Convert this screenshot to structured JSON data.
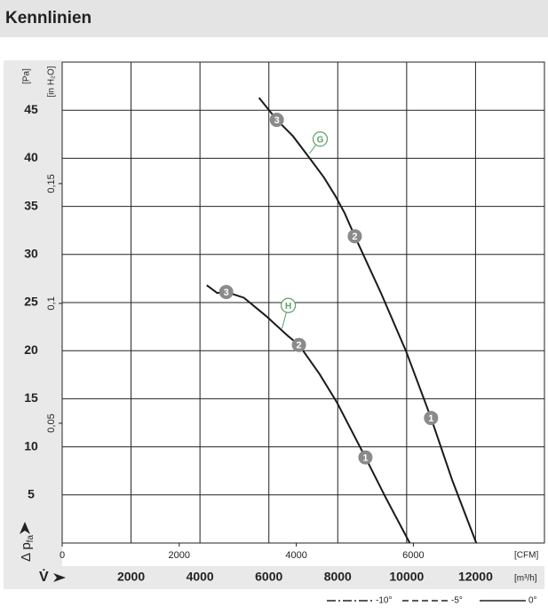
{
  "header": {
    "title": "Kennlinien"
  },
  "chart_data": {
    "type": "line",
    "x_label": "V̇",
    "x_unit": "[m³/h]",
    "x2_unit": "[CFM]",
    "y_label": "Δ p",
    "y_label_sub": "fa",
    "y_unit": "[Pa]",
    "y2_unit": "[in H₂O]",
    "xlim": [
      0,
      14000
    ],
    "xticks": [
      2000,
      4000,
      6000,
      8000,
      10000,
      12000
    ],
    "x2lim": [
      0,
      8240
    ],
    "x2ticks": [
      0,
      2000,
      4000,
      6000
    ],
    "ylim": [
      0,
      50
    ],
    "yticks": [
      5,
      10,
      15,
      20,
      25,
      30,
      35,
      40,
      45
    ],
    "y2lim": [
      0,
      0.2007
    ],
    "y2ticks": [
      {
        "value": 0.05,
        "label": "0,05"
      },
      {
        "value": 0.1,
        "label": "0,1"
      },
      {
        "value": 0.15,
        "label": "0,15"
      }
    ],
    "grid": true,
    "series": [
      {
        "name": "G",
        "color": "#1a1a1a",
        "name_pos": {
          "x": 7490,
          "y": 42.0,
          "tx": 7180,
          "ty": 40.5
        },
        "x": [
          5714,
          6230,
          6700,
          7207,
          7600,
          7928,
          8200,
          8494,
          9266,
          9987,
          10708,
          11326,
          12021
        ],
        "values": [
          46.3,
          44.0,
          42.3,
          39.9,
          38.0,
          36.1,
          34.3,
          31.9,
          25.9,
          19.9,
          13.0,
          6.5,
          0
        ],
        "markers": [
          {
            "x": 6230,
            "y": 44.0,
            "label": "3"
          },
          {
            "x": 8494,
            "y": 31.9,
            "label": "2"
          },
          {
            "x": 10708,
            "y": 13.0,
            "label": "1"
          }
        ]
      },
      {
        "name": "H",
        "color": "#1a1a1a",
        "name_pos": {
          "x": 6564,
          "y": 24.7,
          "tx": 6380,
          "ty": 22.3
        },
        "x": [
          4196,
          4500,
          4762,
          5277,
          5920,
          6564,
          6873,
          7465,
          7979,
          8803,
          9395,
          10090
        ],
        "values": [
          26.8,
          26.0,
          26.1,
          25.5,
          23.6,
          21.5,
          20.6,
          17.6,
          14.6,
          8.9,
          4.7,
          0
        ],
        "markers": [
          {
            "x": 4762,
            "y": 26.1,
            "label": "3"
          },
          {
            "x": 6873,
            "y": 20.6,
            "label": "2"
          },
          {
            "x": 8803,
            "y": 8.9,
            "label": "1"
          }
        ]
      }
    ],
    "legend": [
      {
        "label": "-10°",
        "style": "dashdot"
      },
      {
        "label": "-5°",
        "style": "dashed"
      },
      {
        "label": "0°",
        "style": "solid"
      }
    ]
  }
}
